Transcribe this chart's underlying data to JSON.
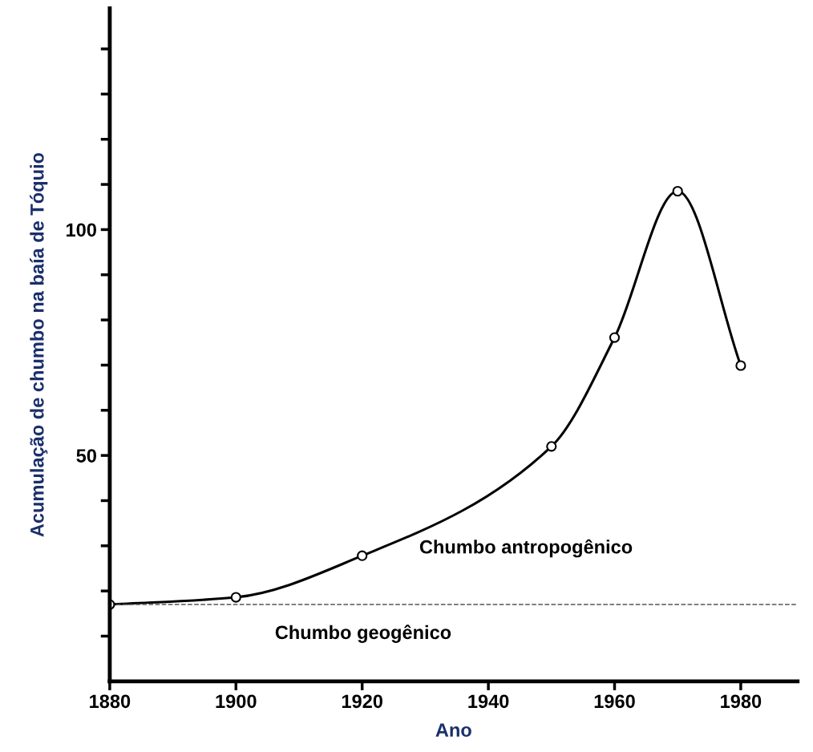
{
  "chart_data": {
    "type": "line",
    "xlabel": "Ano",
    "ylabel": "Acumulação de chumbo na baía de Tóquio",
    "x": [
      1880,
      1900,
      1920,
      1950,
      1960,
      1970,
      1980
    ],
    "series": [
      {
        "color": "#000000",
        "values": [
          17.0,
          18.6,
          27.8,
          52.0,
          76.1,
          108.5,
          69.9
        ]
      }
    ],
    "marker": "circle",
    "line_style": "solid",
    "grid": false,
    "xlim": [
      1880,
      1989
    ],
    "xticks": [
      1880,
      1900,
      1920,
      1940,
      1960,
      1980
    ],
    "ylim": [
      0,
      149
    ],
    "yticks": [
      {
        "value": 10,
        "label": null
      },
      {
        "value": 20,
        "label": null
      },
      {
        "value": 30,
        "label": null
      },
      {
        "value": 40,
        "label": null
      },
      50,
      {
        "value": 60,
        "label": null
      },
      {
        "value": 70,
        "label": null
      },
      {
        "value": 80,
        "label": null
      },
      {
        "value": 90,
        "label": null
      },
      100,
      {
        "value": 110,
        "label": null
      },
      {
        "value": 120,
        "label": null
      },
      {
        "value": 130,
        "label": null
      },
      {
        "value": 140,
        "label": null
      }
    ],
    "ref_lines": [
      {
        "axis": "y",
        "value": 17.0,
        "color": "#555555",
        "line_style": "dashed"
      }
    ],
    "annotations": [
      "Chumbo antropogênico",
      "Chumbo geogênico"
    ]
  }
}
